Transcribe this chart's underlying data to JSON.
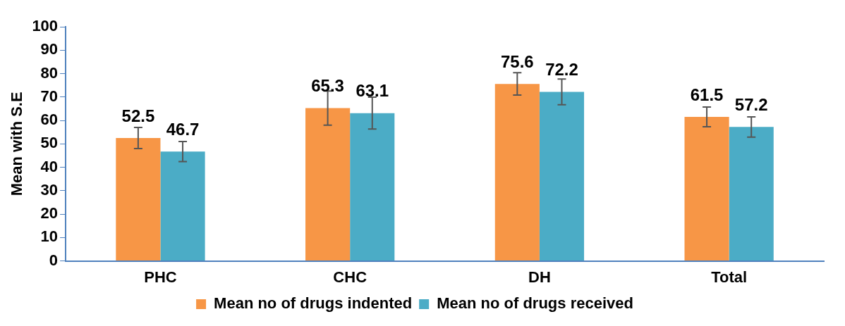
{
  "chart_data": {
    "type": "bar",
    "ylabel": "Mean with S.E",
    "categories": [
      "PHC",
      "CHC",
      "DH",
      "Total"
    ],
    "series": [
      {
        "name": "Mean no of drugs indented",
        "color": "#f79646",
        "values": [
          52.5,
          65.3,
          75.6,
          61.5
        ],
        "errors": [
          4.5,
          7.3,
          4.8,
          4.2
        ]
      },
      {
        "name": "Mean no of drugs received",
        "color": "#4bacc6",
        "values": [
          46.7,
          63.1,
          72.2,
          57.2
        ],
        "errors": [
          4.3,
          6.8,
          5.5,
          4.3
        ]
      }
    ],
    "ylim": [
      0,
      100
    ],
    "yticks": [
      0,
      10,
      20,
      30,
      40,
      50,
      60,
      70,
      80,
      90,
      100
    ],
    "grid": false,
    "legend": "bottom",
    "data_labels": true
  }
}
